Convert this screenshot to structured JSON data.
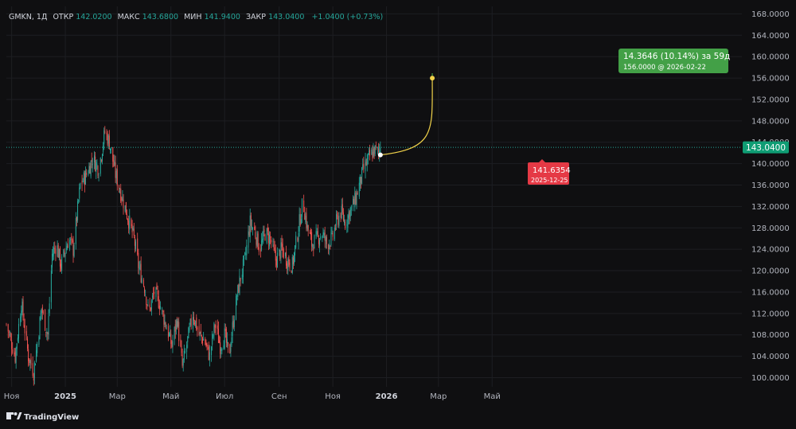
{
  "header": {
    "symbol": "GMKN, 1Д",
    "open_label": "ОТКР",
    "open": "142.0200",
    "high_label": "МАКС",
    "high": "143.6800",
    "low_label": "МИН",
    "low": "141.9400",
    "close_label": "ЗАКР",
    "close": "143.0400",
    "change": "+1.0400 (+0.73%)"
  },
  "price_badge": "143.0400",
  "forecast": {
    "headline": "14.3646 (10.14%) за 59д",
    "sub": "156.0000 @ 2026-02-22"
  },
  "start_marker": {
    "value": "141.6354",
    "date": "2025-12-25"
  },
  "brand": {
    "name": "TradingView"
  },
  "colors": {
    "background": "#0f0f11",
    "up": "#26a69a",
    "down": "#ef5350",
    "forecast_line": "#f0d24a",
    "forecast_box": "#43a047",
    "start_box": "#e53945",
    "badge": "#0f9d74",
    "grid": "#1d1e22",
    "axis_text": "#b2b5be"
  },
  "chart_data": {
    "type": "candlestick",
    "ylim": [
      98.0,
      170.0
    ],
    "y_ticks": [
      "168.0000",
      "164.0000",
      "160.0000",
      "156.0000",
      "152.0000",
      "148.0000",
      "144.0000",
      "140.0000",
      "136.0000",
      "132.0000",
      "128.0000",
      "124.0000",
      "120.0000",
      "116.0000",
      "112.0000",
      "108.0000",
      "104.0000",
      "100.0000"
    ],
    "x_ticks": [
      "Ноя",
      "2025",
      "Мар",
      "Май",
      "Июл",
      "Сен",
      "Ноя",
      "2026",
      "Мар",
      "Май"
    ],
    "x_tick_dates": [
      "2024-11-01",
      "2025-01-01",
      "2025-03-01",
      "2025-05-01",
      "2025-07-01",
      "2025-09-01",
      "2025-11-01",
      "2026-01-01",
      "2026-03-01",
      "2026-05-01"
    ],
    "x_tick_bold": [
      false,
      true,
      false,
      false,
      false,
      false,
      false,
      true,
      false,
      false
    ],
    "start_date": "2024-10-26",
    "last_close": 143.04,
    "anchors": [
      [
        "2024-10-26",
        110
      ],
      [
        "2024-11-05",
        104
      ],
      [
        "2024-11-12",
        114
      ],
      [
        "2024-11-20",
        104
      ],
      [
        "2024-11-26",
        101
      ],
      [
        "2024-12-05",
        113
      ],
      [
        "2024-12-12",
        108
      ],
      [
        "2024-12-17",
        123
      ],
      [
        "2024-12-22",
        125
      ],
      [
        "2024-12-27",
        121
      ],
      [
        "2025-01-05",
        126
      ],
      [
        "2025-01-10",
        124
      ],
      [
        "2025-01-18",
        136
      ],
      [
        "2025-01-25",
        138
      ],
      [
        "2025-02-01",
        141
      ],
      [
        "2025-02-08",
        139
      ],
      [
        "2025-02-15",
        146
      ],
      [
        "2025-02-20",
        144
      ],
      [
        "2025-02-27",
        138
      ],
      [
        "2025-03-06",
        134
      ],
      [
        "2025-03-13",
        130
      ],
      [
        "2025-03-20",
        126
      ],
      [
        "2025-03-25",
        121
      ],
      [
        "2025-04-01",
        117
      ],
      [
        "2025-04-06",
        112
      ],
      [
        "2025-04-12",
        116
      ],
      [
        "2025-04-18",
        114
      ],
      [
        "2025-04-25",
        110
      ],
      [
        "2025-05-02",
        106
      ],
      [
        "2025-05-08",
        111
      ],
      [
        "2025-05-14",
        102
      ],
      [
        "2025-05-20",
        107
      ],
      [
        "2025-05-26",
        112
      ],
      [
        "2025-06-02",
        108
      ],
      [
        "2025-06-08",
        107
      ],
      [
        "2025-06-14",
        104
      ],
      [
        "2025-06-20",
        110
      ],
      [
        "2025-06-26",
        106
      ],
      [
        "2025-07-01",
        108
      ],
      [
        "2025-07-06",
        104
      ],
      [
        "2025-07-12",
        112
      ],
      [
        "2025-07-18",
        118
      ],
      [
        "2025-07-24",
        122
      ],
      [
        "2025-07-30",
        129
      ],
      [
        "2025-08-05",
        127
      ],
      [
        "2025-08-10",
        124
      ],
      [
        "2025-08-16",
        127
      ],
      [
        "2025-08-22",
        126
      ],
      [
        "2025-08-28",
        122
      ],
      [
        "2025-09-04",
        124
      ],
      [
        "2025-09-10",
        122
      ],
      [
        "2025-09-16",
        121
      ],
      [
        "2025-09-22",
        127
      ],
      [
        "2025-09-28",
        133
      ],
      [
        "2025-10-03",
        128
      ],
      [
        "2025-10-08",
        125
      ],
      [
        "2025-10-14",
        126
      ],
      [
        "2025-10-20",
        127
      ],
      [
        "2025-10-25",
        125
      ],
      [
        "2025-10-31",
        126
      ],
      [
        "2025-11-05",
        129
      ],
      [
        "2025-11-10",
        131
      ],
      [
        "2025-11-15",
        129
      ],
      [
        "2025-11-20",
        131
      ],
      [
        "2025-11-26",
        133
      ],
      [
        "2025-12-01",
        136
      ],
      [
        "2025-12-06",
        139
      ],
      [
        "2025-12-12",
        141
      ],
      [
        "2025-12-18",
        142.5
      ],
      [
        "2025-12-23",
        142
      ],
      [
        "2025-12-25",
        143.04
      ]
    ],
    "forecast": {
      "from_date": "2025-12-25",
      "from_value": 141.6354,
      "to_date": "2026-02-22",
      "to_value": 156.0
    },
    "current_price": 143.04
  }
}
